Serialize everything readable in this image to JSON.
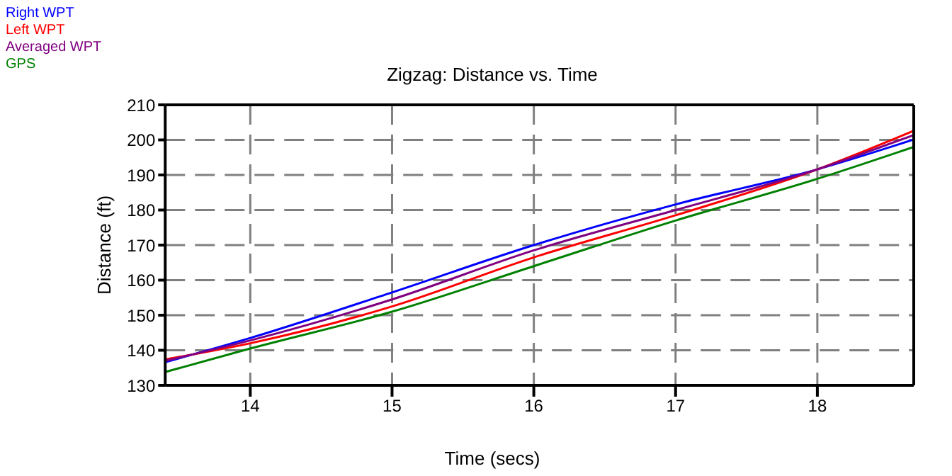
{
  "chart_data": {
    "type": "line",
    "title": "Zigzag: Distance vs. Time",
    "xlabel": "Time (secs)",
    "ylabel": "Distance (ft)",
    "x": [
      13.4,
      14,
      15,
      16,
      17,
      18,
      18.68
    ],
    "series": [
      {
        "name": "Right WPT",
        "color": "#0000ff",
        "values": [
          136.6,
          143.5,
          156.5,
          170,
          181.6,
          191.6,
          200.1
        ]
      },
      {
        "name": "Left WPT",
        "color": "#ff0000",
        "values": [
          137.4,
          142,
          152.5,
          166.5,
          178.5,
          191.6,
          202.6
        ]
      },
      {
        "name": "Averaged WPT",
        "color": "#800080",
        "values": [
          137,
          142.8,
          154.5,
          168.5,
          180,
          191.6,
          201.4
        ]
      },
      {
        "name": "GPS",
        "color": "#008000",
        "values": [
          133.8,
          140.5,
          151,
          164,
          177,
          188.9,
          198
        ]
      }
    ],
    "xlim": [
      13.4,
      18.68
    ],
    "xticks": [
      14,
      15,
      16,
      17,
      18
    ],
    "ylim": [
      130,
      210
    ],
    "yticks": [
      130,
      140,
      150,
      160,
      170,
      180,
      190,
      200,
      210
    ],
    "grid": true,
    "legend": "top left",
    "marker": "none",
    "line_style": "solid"
  }
}
